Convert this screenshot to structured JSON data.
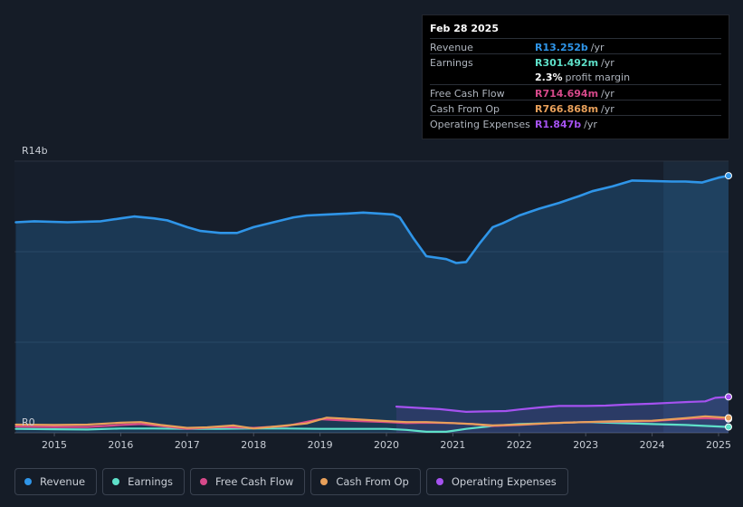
{
  "tooltip": {
    "date": "Feb 28 2025",
    "rows": [
      {
        "label": "Revenue",
        "value": "R13.252b",
        "unit": "/yr",
        "color": "#2f95e8"
      },
      {
        "label": "Earnings",
        "value": "R301.492m",
        "unit": "/yr",
        "color": "#5ee0c9"
      },
      {
        "label": "",
        "value": "2.3%",
        "unit": "profit margin",
        "color": "#ffffff"
      },
      {
        "label": "Free Cash Flow",
        "value": "R714.694m",
        "unit": "/yr",
        "color": "#d6498a"
      },
      {
        "label": "Cash From Op",
        "value": "R766.868m",
        "unit": "/yr",
        "color": "#e8a05a"
      },
      {
        "label": "Operating Expenses",
        "value": "R1.847b",
        "unit": "/yr",
        "color": "#a552f0"
      }
    ]
  },
  "legend": [
    {
      "label": "Revenue",
      "color": "#2f95e8"
    },
    {
      "label": "Earnings",
      "color": "#5ee0c9"
    },
    {
      "label": "Free Cash Flow",
      "color": "#d6498a"
    },
    {
      "label": "Cash From Op",
      "color": "#e8a05a"
    },
    {
      "label": "Operating Expenses",
      "color": "#a552f0"
    }
  ],
  "chart_data": {
    "type": "line",
    "title": "",
    "ylabel_top": "R14b",
    "ylabel_bottom": "R0",
    "ylim": [
      0,
      14
    ],
    "xlim": [
      2014.4,
      2025.15
    ],
    "x_ticks": [
      "2015",
      "2016",
      "2017",
      "2018",
      "2019",
      "2020",
      "2021",
      "2022",
      "2023",
      "2024",
      "2025"
    ],
    "x_tick_values": [
      2015,
      2016,
      2017,
      2018,
      2019,
      2020,
      2021,
      2022,
      2023,
      2024,
      2025
    ],
    "forecast_start": 2024.17,
    "series": [
      {
        "name": "Revenue",
        "color": "#2f95e8",
        "fill": true,
        "x": [
          2014.42,
          2014.7,
          2015.2,
          2015.7,
          2016.0,
          2016.2,
          2016.5,
          2016.7,
          2017.0,
          2017.2,
          2017.5,
          2017.75,
          2018.0,
          2018.3,
          2018.6,
          2018.8,
          2019.1,
          2019.4,
          2019.65,
          2019.9,
          2020.1,
          2020.2,
          2020.4,
          2020.6,
          2020.9,
          2021.05,
          2021.2,
          2021.4,
          2021.6,
          2021.75,
          2022.0,
          2022.3,
          2022.6,
          2022.9,
          2023.1,
          2023.4,
          2023.7,
          2024.0,
          2024.3,
          2024.5,
          2024.75,
          2024.9,
          2025.0,
          2025.15
        ],
        "values": [
          10.85,
          10.9,
          10.85,
          10.9,
          11.05,
          11.15,
          11.05,
          10.95,
          10.6,
          10.4,
          10.3,
          10.3,
          10.6,
          10.85,
          11.1,
          11.2,
          11.25,
          11.3,
          11.35,
          11.3,
          11.25,
          11.1,
          10.05,
          9.1,
          8.95,
          8.75,
          8.8,
          9.75,
          10.6,
          10.8,
          11.2,
          11.55,
          11.85,
          12.2,
          12.45,
          12.7,
          13.0,
          12.98,
          12.95,
          12.95,
          12.9,
          13.05,
          13.15,
          13.25
        ]
      },
      {
        "name": "Earnings",
        "color": "#5ee0c9",
        "fill": false,
        "x": [
          2014.42,
          2015.0,
          2015.5,
          2016.0,
          2016.5,
          2017.0,
          2017.5,
          2018.0,
          2018.5,
          2019.0,
          2019.5,
          2020.0,
          2020.3,
          2020.6,
          2020.9,
          2021.2,
          2021.6,
          2022.0,
          2022.5,
          2023.0,
          2023.5,
          2024.0,
          2024.5,
          2025.15
        ],
        "values": [
          0.2,
          0.18,
          0.17,
          0.22,
          0.22,
          0.2,
          0.2,
          0.22,
          0.22,
          0.2,
          0.2,
          0.2,
          0.15,
          0.05,
          0.05,
          0.2,
          0.35,
          0.45,
          0.5,
          0.55,
          0.5,
          0.45,
          0.4,
          0.3
        ]
      },
      {
        "name": "Free Cash Flow",
        "color": "#d6498a",
        "fill": false,
        "x": [
          2014.42,
          2015.0,
          2015.5,
          2016.0,
          2016.3,
          2016.6,
          2017.0,
          2017.5,
          2018.0,
          2018.5,
          2019.0,
          2019.3,
          2019.6,
          2020.0,
          2020.3,
          2020.6,
          2021.0,
          2021.3,
          2021.6,
          2022.0,
          2022.5,
          2023.0,
          2023.5,
          2024.0,
          2024.5,
          2024.8,
          2025.15
        ],
        "values": [
          0.32,
          0.3,
          0.3,
          0.4,
          0.45,
          0.35,
          0.2,
          0.3,
          0.25,
          0.35,
          0.7,
          0.65,
          0.6,
          0.55,
          0.5,
          0.52,
          0.5,
          0.45,
          0.35,
          0.4,
          0.5,
          0.55,
          0.58,
          0.6,
          0.72,
          0.75,
          0.71
        ]
      },
      {
        "name": "Cash From Op",
        "color": "#e8a05a",
        "fill": false,
        "x": [
          2014.42,
          2015.0,
          2015.5,
          2016.0,
          2016.3,
          2016.6,
          2017.0,
          2017.3,
          2017.7,
          2018.0,
          2018.5,
          2018.8,
          2019.1,
          2019.5,
          2020.0,
          2020.3,
          2020.6,
          2021.0,
          2021.3,
          2021.6,
          2022.0,
          2022.5,
          2023.0,
          2023.5,
          2024.0,
          2024.5,
          2024.8,
          2025.15
        ],
        "values": [
          0.42,
          0.4,
          0.42,
          0.52,
          0.55,
          0.4,
          0.25,
          0.28,
          0.38,
          0.22,
          0.38,
          0.48,
          0.78,
          0.7,
          0.6,
          0.55,
          0.55,
          0.5,
          0.45,
          0.38,
          0.42,
          0.5,
          0.55,
          0.6,
          0.62,
          0.75,
          0.85,
          0.77
        ]
      },
      {
        "name": "Operating Expenses",
        "color": "#a552f0",
        "fill": false,
        "x": [
          2020.15,
          2020.5,
          2020.8,
          2021.0,
          2021.2,
          2021.5,
          2021.8,
          2022.0,
          2022.3,
          2022.6,
          2023.0,
          2023.3,
          2023.6,
          2024.0,
          2024.3,
          2024.5,
          2024.8,
          2024.95,
          2025.15
        ],
        "values": [
          1.35,
          1.28,
          1.22,
          1.15,
          1.08,
          1.1,
          1.12,
          1.2,
          1.3,
          1.38,
          1.38,
          1.4,
          1.45,
          1.5,
          1.55,
          1.58,
          1.62,
          1.8,
          1.85
        ]
      }
    ]
  }
}
